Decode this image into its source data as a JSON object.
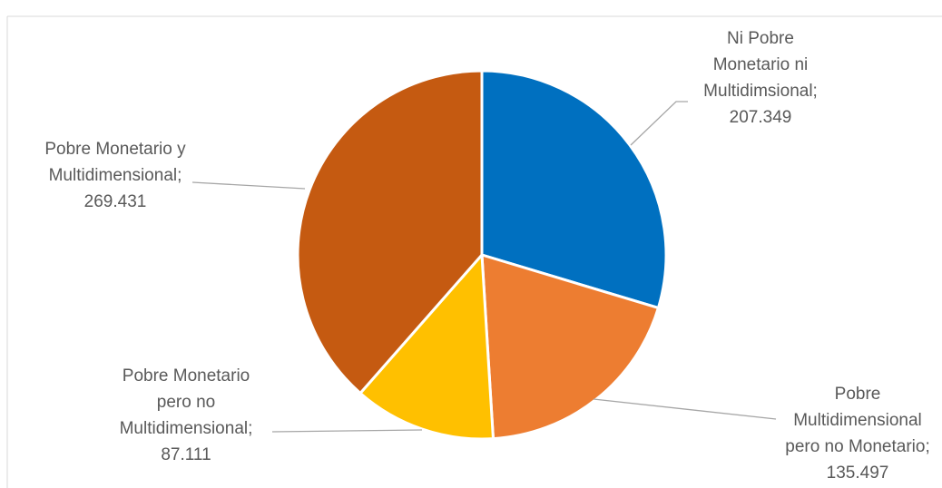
{
  "chart_data": {
    "type": "pie",
    "title": "",
    "slices": [
      {
        "label": [
          "Ni Pobre",
          "Monetario ni",
          "Multidimsional;"
        ],
        "display": "207.349",
        "value": 207349,
        "color": "#0070c0"
      },
      {
        "label": [
          "Pobre",
          "Multidimensional",
          "pero no Monetario;"
        ],
        "display": "135.497",
        "value": 135497,
        "color": "#ed7d31"
      },
      {
        "label": [
          "Pobre Monetario",
          "pero no",
          "Multidimensional;"
        ],
        "display": "87.111",
        "value": 87111,
        "color": "#ffc000"
      },
      {
        "label": [
          "Pobre Monetario y",
          "Multidimensional;"
        ],
        "display": "269.431",
        "value": 269431,
        "color": "#c55a11"
      }
    ],
    "start_angle_deg": 0,
    "direction": "clockwise",
    "legend": "none",
    "data_labels": "outside-with-leader-lines"
  }
}
